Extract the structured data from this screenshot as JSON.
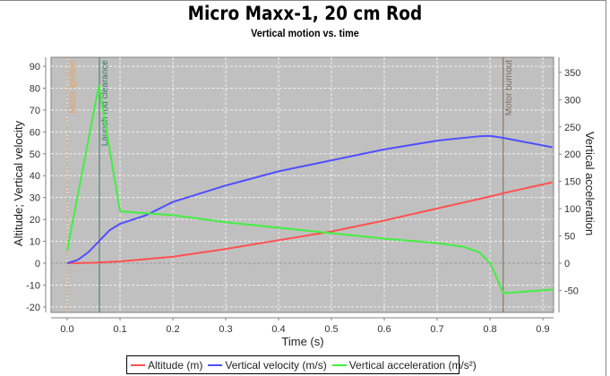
{
  "title": "Micro Maxx-1, 20 cm Rod",
  "subtitle": "Vertical motion vs. time",
  "legend": [
    {
      "label": "Altitude (m)",
      "color": "#ff5050"
    },
    {
      "label": "Vertical velocity (m/s)",
      "color": "#5050ff"
    },
    {
      "label": "Vertical acceleration (m/s²)",
      "color": "#40f040"
    }
  ],
  "markers": [
    {
      "label": "Motor ignition",
      "time": 0.0,
      "color": "#e8a060"
    },
    {
      "label": "Launch rod clearance",
      "time": 0.061,
      "color": "#3a7a60"
    },
    {
      "label": "Motor burnout",
      "time": 0.825,
      "color": "#7a6a60"
    }
  ],
  "chart_data": {
    "type": "line",
    "title": "Micro Maxx-1, 20 cm Rod",
    "subtitle": "Vertical motion vs. time",
    "xlabel": "Time (s)",
    "ylabel": "Altitude; Vertical velocity",
    "y2label": "Vertical acceleration",
    "xlim": [
      -0.03,
      0.918
    ],
    "ylim": [
      -23,
      97
    ],
    "y2lim": [
      -90,
      380
    ],
    "xticks": [
      0.0,
      0.1,
      0.2,
      0.3,
      0.4,
      0.5,
      0.6,
      0.7,
      0.8,
      0.9
    ],
    "yticks": [
      -20,
      -10,
      0,
      10,
      20,
      30,
      40,
      50,
      60,
      70,
      80,
      90
    ],
    "y2ticks": [
      -50,
      0,
      50,
      100,
      150,
      200,
      250,
      300,
      350
    ],
    "grid": true,
    "legend_position": "bottom",
    "series": [
      {
        "name": "Altitude (m)",
        "axis": "left",
        "color": "#ff5050",
        "x": [
          0,
          0.05,
          0.1,
          0.2,
          0.3,
          0.4,
          0.5,
          0.6,
          0.7,
          0.8,
          0.825,
          0.918
        ],
        "values": [
          0,
          0.2,
          0.8,
          3,
          6.5,
          10.5,
          14.5,
          19.5,
          25,
          30.5,
          32,
          37
        ]
      },
      {
        "name": "Vertical velocity (m/s)",
        "axis": "left",
        "color": "#5050ff",
        "x": [
          0,
          0.02,
          0.04,
          0.06,
          0.08,
          0.1,
          0.15,
          0.2,
          0.3,
          0.4,
          0.5,
          0.6,
          0.7,
          0.78,
          0.8,
          0.825,
          0.918
        ],
        "values": [
          0,
          1.5,
          5,
          10,
          15,
          18,
          22,
          28,
          35.5,
          42,
          47,
          52,
          56,
          58,
          58.2,
          57.3,
          53
        ]
      },
      {
        "name": "Vertical acceleration (m/s²)",
        "axis": "right",
        "color": "#40f040",
        "x": [
          0,
          0.06,
          0.1,
          0.2,
          0.3,
          0.4,
          0.5,
          0.6,
          0.7,
          0.75,
          0.78,
          0.8,
          0.81,
          0.825,
          0.9,
          0.918
        ],
        "values": [
          23,
          327,
          95,
          88,
          75,
          65,
          55,
          45,
          37,
          30,
          20,
          0,
          -20,
          -55,
          -50,
          -48
        ]
      }
    ]
  }
}
